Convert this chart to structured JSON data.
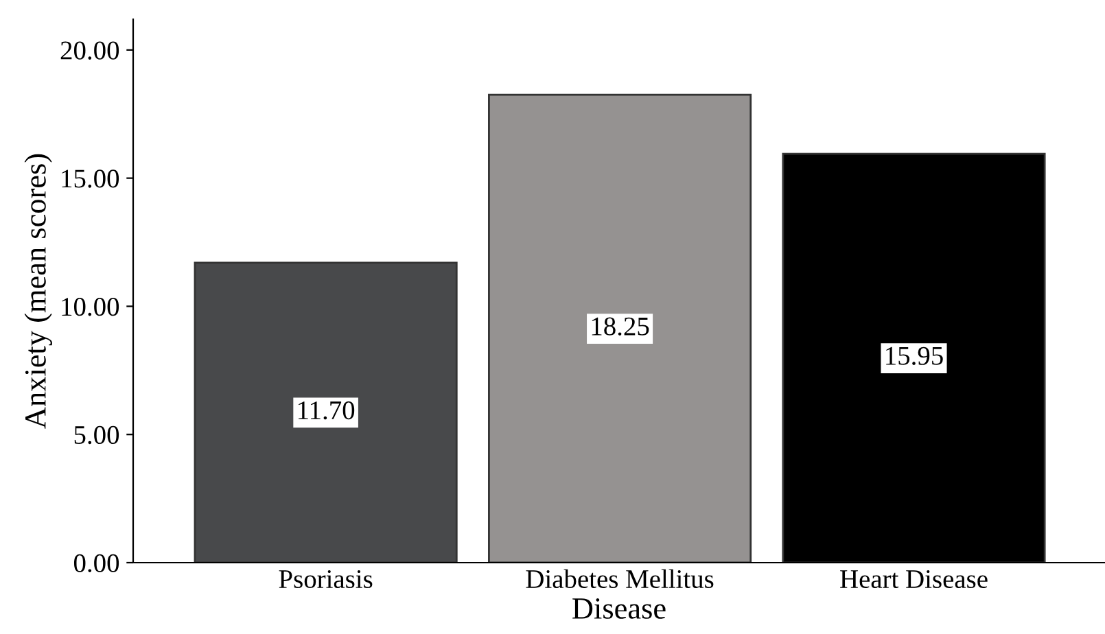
{
  "chart_data": {
    "type": "bar",
    "xlabel": "Disease",
    "ylabel": "Anxiety (mean scores)",
    "categories": [
      "Psoriasis",
      "Diabetes Mellitus",
      "Heart Disease"
    ],
    "values": [
      11.7,
      18.25,
      15.95
    ],
    "colors": [
      "#48494b",
      "#959291",
      "#000000"
    ],
    "value_labels": [
      "11.70",
      "18.25",
      "15.95"
    ],
    "ylim": [
      0,
      21.2
    ],
    "yticks": [
      {
        "value": 0,
        "label": "0.00"
      },
      {
        "value": 5,
        "label": "5.00"
      },
      {
        "value": 10,
        "label": "10.00"
      },
      {
        "value": 15,
        "label": "15.00"
      },
      {
        "value": 20,
        "label": "20.00"
      }
    ],
    "grid": false,
    "legend": false
  }
}
